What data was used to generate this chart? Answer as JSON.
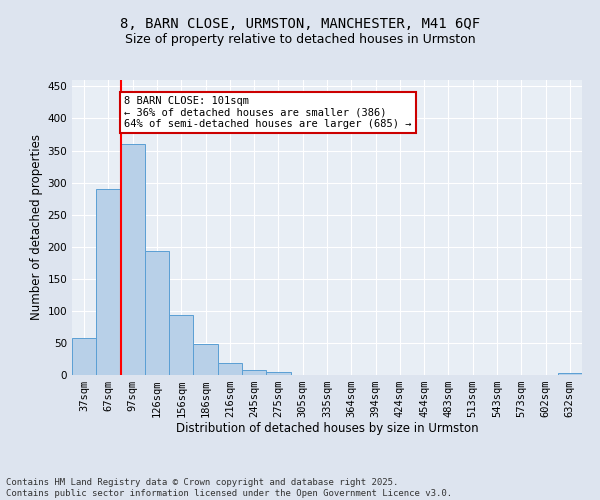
{
  "title_line1": "8, BARN CLOSE, URMSTON, MANCHESTER, M41 6QF",
  "title_line2": "Size of property relative to detached houses in Urmston",
  "xlabel": "Distribution of detached houses by size in Urmston",
  "ylabel": "Number of detached properties",
  "categories": [
    "37sqm",
    "67sqm",
    "97sqm",
    "126sqm",
    "156sqm",
    "186sqm",
    "216sqm",
    "245sqm",
    "275sqm",
    "305sqm",
    "335sqm",
    "364sqm",
    "394sqm",
    "424sqm",
    "454sqm",
    "483sqm",
    "513sqm",
    "543sqm",
    "573sqm",
    "602sqm",
    "632sqm"
  ],
  "values": [
    57,
    290,
    360,
    193,
    93,
    48,
    18,
    8,
    5,
    0,
    0,
    0,
    0,
    0,
    0,
    0,
    0,
    0,
    0,
    0,
    3
  ],
  "bar_color": "#b8d0e8",
  "bar_edge_color": "#5a9fd4",
  "red_line_index": 2,
  "annotation_text": "8 BARN CLOSE: 101sqm\n← 36% of detached houses are smaller (386)\n64% of semi-detached houses are larger (685) →",
  "annotation_box_color": "#ffffff",
  "annotation_box_edge": "#cc0000",
  "ylim": [
    0,
    460
  ],
  "yticks": [
    0,
    50,
    100,
    150,
    200,
    250,
    300,
    350,
    400,
    450
  ],
  "bg_color": "#dde4ef",
  "plot_bg_color": "#e8eef5",
  "footer_line1": "Contains HM Land Registry data © Crown copyright and database right 2025.",
  "footer_line2": "Contains public sector information licensed under the Open Government Licence v3.0.",
  "title_fontsize": 10,
  "subtitle_fontsize": 9,
  "axis_label_fontsize": 8.5,
  "tick_fontsize": 7.5,
  "annotation_fontsize": 7.5,
  "footer_fontsize": 6.5
}
